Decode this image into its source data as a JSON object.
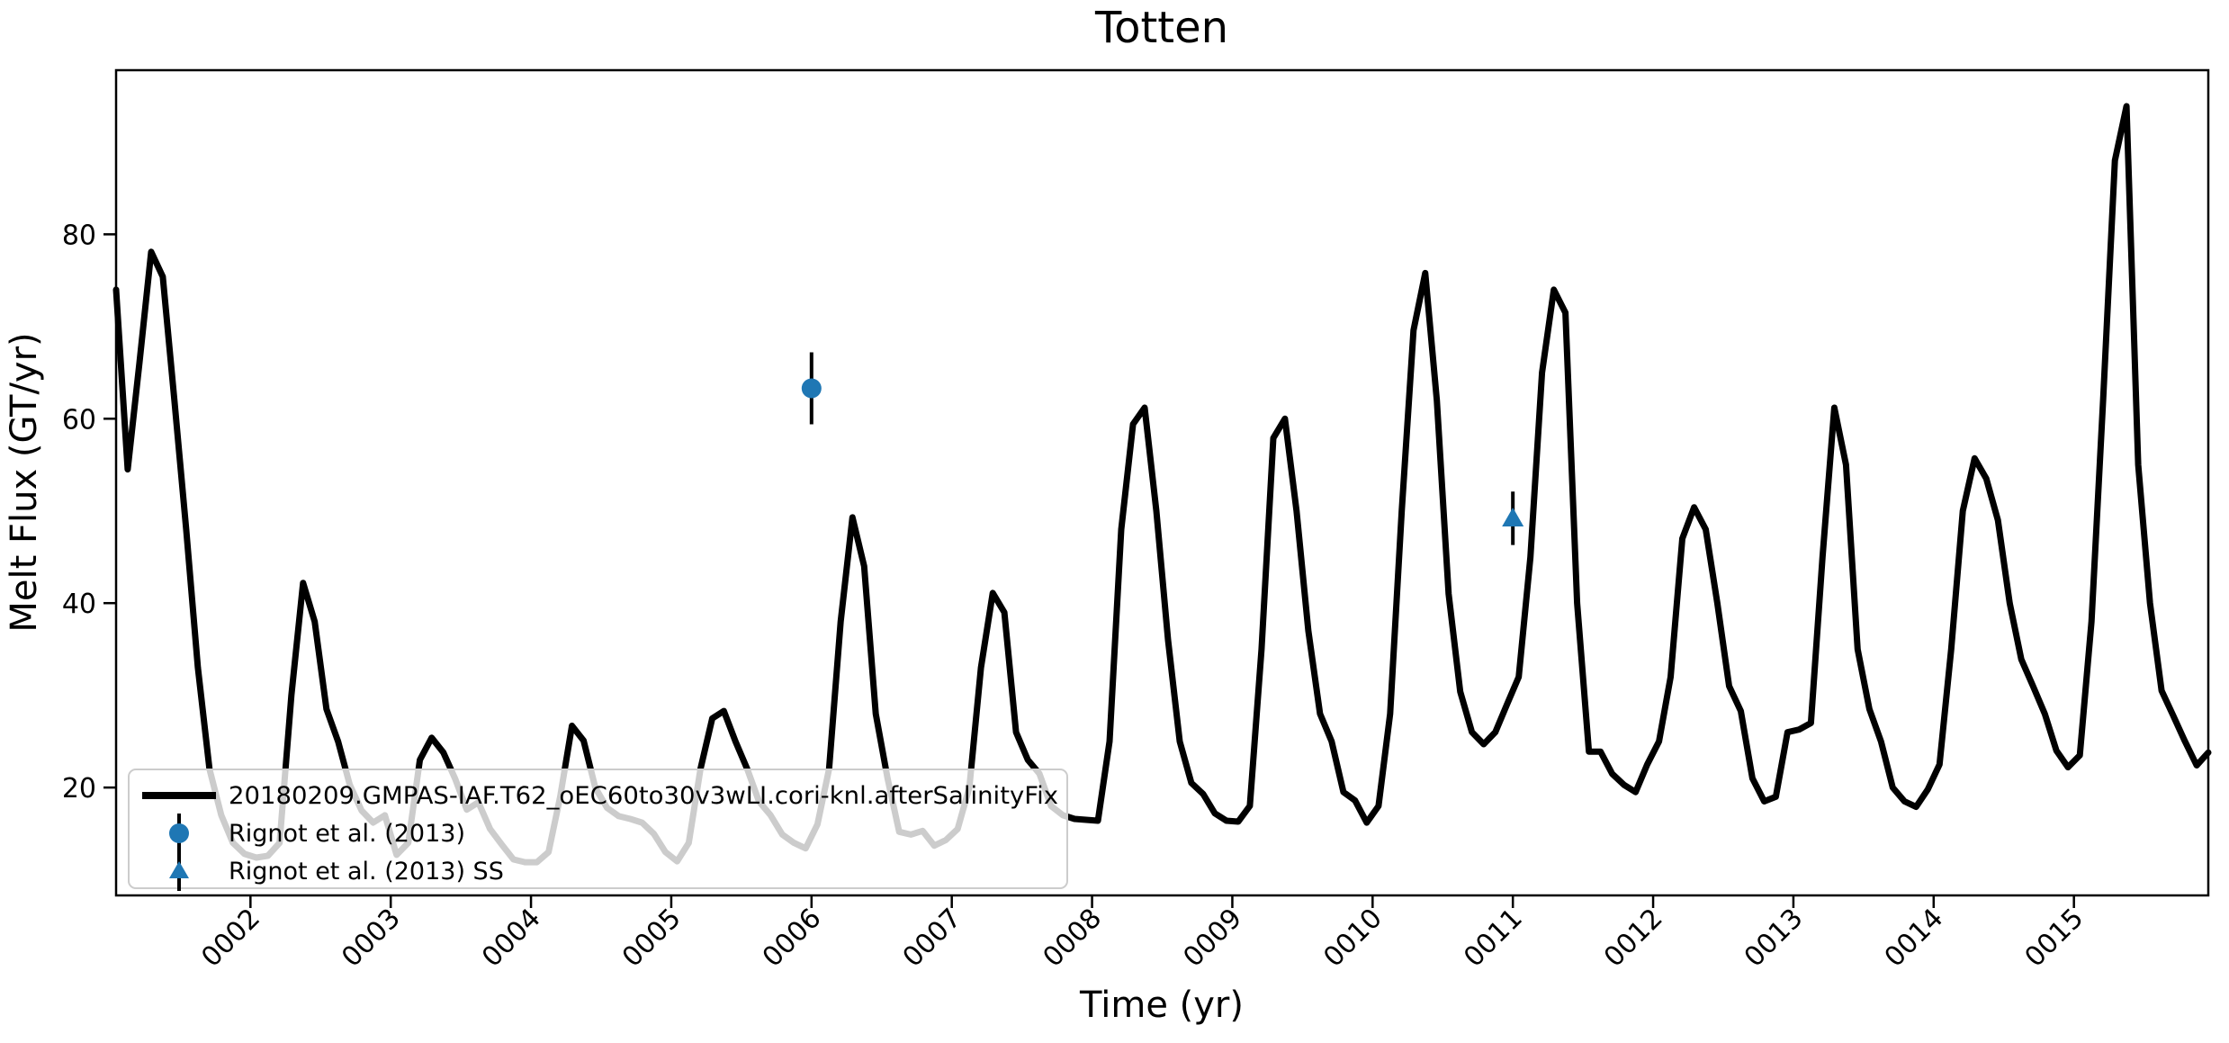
{
  "title": "Totten",
  "xlabel": "Time (yr)",
  "ylabel": "Melt Flux (GT/yr)",
  "colors": {
    "line": "#000000",
    "marker": "#1f77b4",
    "errorbar": "#000000",
    "legend_border": "#cccccc",
    "background": "#ffffff"
  },
  "legend": {
    "items": [
      {
        "label": "20180209.GMPAS-IAF.T62_oEC60to30v3wLI.cori-knl.afterSalinityFix",
        "symbol": "line",
        "color": "#000000"
      },
      {
        "label": "Rignot et al. (2013)",
        "symbol": "circle-errorbar",
        "color": "#1f77b4"
      },
      {
        "label": "Rignot et al. (2013) SS",
        "symbol": "triangle-errorbar",
        "color": "#1f77b4"
      }
    ]
  },
  "chart_data": {
    "type": "line",
    "title": "Totten",
    "xlabel": "Time (yr)",
    "ylabel": "Melt Flux (GT/yr)",
    "xlim": [
      1.042,
      15.958
    ],
    "ylim": [
      8.3,
      97.8
    ],
    "grid": false,
    "legend_position": "lower left",
    "x_ticks": {
      "values": [
        2,
        3,
        4,
        5,
        6,
        7,
        8,
        9,
        10,
        11,
        12,
        13,
        14,
        15
      ],
      "labels": [
        "0002",
        "0003",
        "0004",
        "0005",
        "0006",
        "0007",
        "0008",
        "0009",
        "0010",
        "0011",
        "0012",
        "0013",
        "0014",
        "0015"
      ],
      "rotation": 45
    },
    "y_ticks": [
      20,
      40,
      60,
      80
    ],
    "series": [
      {
        "name": "20180209.GMPAS-IAF.T62_oEC60to30v3wLI.cori-knl.afterSalinityFix",
        "color": "#000000",
        "linewidth": 7,
        "x": [
          1.042,
          1.125,
          1.208,
          1.292,
          1.375,
          1.458,
          1.542,
          1.625,
          1.708,
          1.792,
          1.875,
          1.958,
          2.042,
          2.125,
          2.208,
          2.292,
          2.375,
          2.458,
          2.542,
          2.625,
          2.708,
          2.792,
          2.875,
          2.958,
          3.042,
          3.125,
          3.208,
          3.292,
          3.375,
          3.458,
          3.542,
          3.625,
          3.708,
          3.792,
          3.875,
          3.958,
          4.042,
          4.125,
          4.208,
          4.292,
          4.375,
          4.458,
          4.542,
          4.625,
          4.708,
          4.792,
          4.875,
          4.958,
          5.042,
          5.125,
          5.208,
          5.292,
          5.375,
          5.458,
          5.542,
          5.625,
          5.708,
          5.792,
          5.875,
          5.958,
          6.042,
          6.125,
          6.208,
          6.292,
          6.375,
          6.458,
          6.542,
          6.625,
          6.708,
          6.792,
          6.875,
          6.958,
          7.042,
          7.125,
          7.208,
          7.292,
          7.375,
          7.458,
          7.542,
          7.625,
          7.708,
          7.792,
          7.875,
          7.958,
          8.042,
          8.125,
          8.208,
          8.292,
          8.375,
          8.458,
          8.542,
          8.625,
          8.708,
          8.792,
          8.875,
          8.958,
          9.042,
          9.125,
          9.208,
          9.292,
          9.375,
          9.458,
          9.542,
          9.625,
          9.708,
          9.792,
          9.875,
          9.958,
          10.042,
          10.125,
          10.208,
          10.292,
          10.375,
          10.458,
          10.542,
          10.625,
          10.708,
          10.792,
          10.875,
          10.958,
          11.042,
          11.125,
          11.208,
          11.292,
          11.375,
          11.458,
          11.542,
          11.625,
          11.708,
          11.792,
          11.875,
          11.958,
          12.042,
          12.125,
          12.208,
          12.292,
          12.375,
          12.458,
          12.542,
          12.625,
          12.708,
          12.792,
          12.875,
          12.958,
          13.042,
          13.125,
          13.208,
          13.292,
          13.375,
          13.458,
          13.542,
          13.625,
          13.708,
          13.792,
          13.875,
          13.958,
          14.042,
          14.125,
          14.208,
          14.292,
          14.375,
          14.458,
          14.542,
          14.625,
          14.708,
          14.792,
          14.875,
          14.958,
          15.042,
          15.125,
          15.208,
          15.292,
          15.375,
          15.458,
          15.542,
          15.625,
          15.708,
          15.792,
          15.875,
          15.958
        ],
        "y": [
          74.0,
          54.5,
          66.0,
          78.1,
          75.4,
          62.0,
          48.0,
          33.0,
          22.0,
          17.0,
          14.0,
          12.8,
          12.4,
          12.6,
          14.0,
          30.0,
          42.2,
          38.0,
          28.5,
          25.0,
          20.3,
          17.5,
          16.2,
          17.0,
          12.7,
          14.0,
          23.0,
          25.4,
          23.8,
          21.0,
          17.6,
          18.4,
          15.5,
          13.8,
          12.2,
          11.9,
          11.9,
          13.0,
          19.0,
          26.7,
          25.1,
          20.0,
          17.8,
          16.9,
          16.6,
          16.2,
          15.0,
          13.0,
          12.0,
          14.0,
          22.0,
          27.5,
          28.3,
          25.0,
          22.0,
          18.5,
          17.0,
          14.9,
          14.0,
          13.4,
          16.0,
          22.0,
          38.0,
          49.3,
          44.0,
          28.0,
          21.0,
          15.2,
          14.9,
          15.3,
          13.7,
          14.3,
          15.5,
          20.0,
          33.0,
          41.1,
          39.0,
          26.0,
          23.0,
          21.5,
          18.0,
          17.0,
          16.6,
          16.5,
          16.4,
          25.0,
          48.0,
          59.4,
          61.2,
          50.0,
          36.0,
          25.0,
          20.5,
          19.3,
          17.2,
          16.4,
          16.3,
          18.0,
          35.0,
          57.9,
          60.0,
          50.0,
          37.0,
          28.0,
          25.0,
          19.5,
          18.6,
          16.2,
          18.0,
          28.0,
          50.0,
          69.6,
          75.8,
          62.0,
          41.0,
          30.4,
          26.0,
          24.7,
          26.0,
          29.0,
          32.0,
          45.0,
          65.0,
          74.0,
          71.5,
          40.0,
          23.9,
          23.9,
          21.5,
          20.3,
          19.5,
          22.5,
          25.0,
          32.0,
          47.0,
          50.4,
          48.0,
          40.0,
          31.0,
          28.3,
          21.0,
          18.5,
          19.0,
          26.0,
          26.3,
          27.0,
          45.0,
          61.2,
          55.0,
          35.0,
          28.5,
          25.0,
          20.0,
          18.5,
          17.9,
          19.8,
          22.5,
          35.0,
          50.0,
          55.7,
          53.5,
          49.0,
          40.0,
          33.9,
          31.0,
          28.0,
          24.0,
          22.2,
          23.5,
          38.0,
          62.0,
          88.0,
          93.9,
          55.0,
          40.0,
          30.5,
          27.8,
          25.0,
          22.4,
          23.8
        ]
      }
    ],
    "observations": [
      {
        "name": "Rignot et al. (2013)",
        "marker": "circle",
        "color": "#1f77b4",
        "x": 6.0,
        "y": 63.3,
        "yerr": 3.9
      },
      {
        "name": "Rignot et al. (2013) SS",
        "marker": "triangle",
        "color": "#1f77b4",
        "x": 11.0,
        "y": 49.2,
        "yerr": 2.9
      }
    ]
  }
}
